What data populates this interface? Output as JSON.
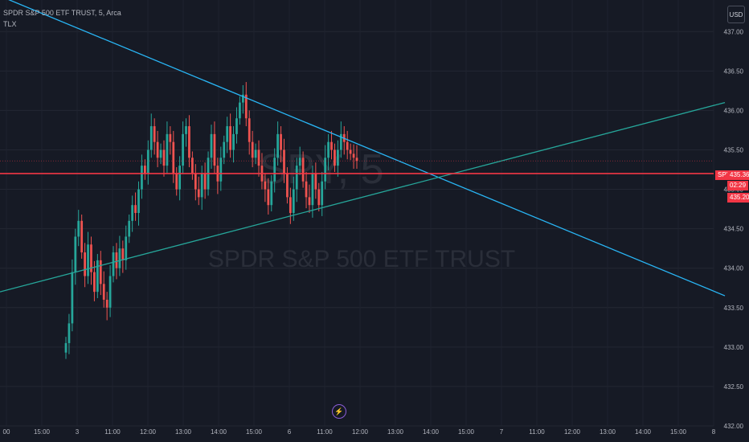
{
  "header": {
    "title": "SPDR S&P 500 ETF TRUST, 5, Arca",
    "indicator": "TLX"
  },
  "currency": "USD",
  "watermark": {
    "ticker": "SPY, 5",
    "name": "SPDR S&P 500 ETF TRUST"
  },
  "price_tags": {
    "symbol": "SPY",
    "last": "435.36",
    "countdown": "02:29",
    "line_level": "435.20"
  },
  "colors": {
    "background": "#161a25",
    "up": "#26a69a",
    "down": "#ef5350",
    "trendline_down": "#29b6f6",
    "trendline_up": "#26a69a",
    "hline": "#f23645"
  },
  "chart_data": {
    "type": "candlestick",
    "ylim": [
      432.0,
      437.4
    ],
    "y_ticks": [
      "437.00",
      "436.50",
      "436.00",
      "435.50",
      "435.00",
      "434.50",
      "434.00",
      "433.50",
      "433.00",
      "432.50",
      "432.00"
    ],
    "x_ticks": [
      "00",
      "15:00",
      "3",
      "11:00",
      "12:00",
      "13:00",
      "14:00",
      "15:00",
      "6",
      "11:00",
      "12:00",
      "13:00",
      "14:00",
      "15:00",
      "7",
      "11:00",
      "12:00",
      "13:00",
      "14:00",
      "15:00",
      "8"
    ],
    "horizontal_line": 435.2,
    "closes": [
      433.05,
      433.3,
      433.95,
      434.4,
      434.6,
      434.2,
      433.9,
      434.3,
      433.95,
      433.7,
      434.1,
      433.8,
      433.6,
      433.5,
      433.9,
      434.2,
      434.0,
      434.25,
      434.1,
      434.4,
      434.6,
      434.8,
      434.7,
      435.0,
      435.3,
      435.2,
      435.5,
      435.8,
      435.6,
      435.4,
      435.5,
      435.3,
      435.7,
      435.6,
      435.2,
      435.0,
      435.3,
      435.7,
      435.8,
      435.4,
      435.2,
      435.0,
      434.9,
      435.2,
      435.0,
      435.4,
      435.7,
      435.3,
      435.1,
      435.4,
      435.6,
      435.8,
      435.5,
      435.7,
      435.9,
      436.1,
      436.2,
      435.9,
      435.6,
      435.4,
      435.5,
      435.3,
      435.1,
      435.0,
      434.8,
      435.1,
      435.4,
      435.7,
      435.5,
      435.2,
      434.9,
      434.7,
      435.0,
      435.3,
      435.4,
      435.1,
      434.9,
      434.8,
      435.2,
      435.0,
      434.8,
      435.1,
      435.4,
      435.6,
      435.5,
      435.3,
      435.5,
      435.7,
      435.6,
      435.5,
      435.45,
      435.4,
      435.36
    ],
    "trendline_down": {
      "from": [
        "00",
        437.45
      ],
      "to": [
        "8",
        433.65
      ]
    },
    "trendline_up": {
      "from": [
        "00",
        433.7
      ],
      "to": [
        "8",
        436.1
      ]
    }
  }
}
